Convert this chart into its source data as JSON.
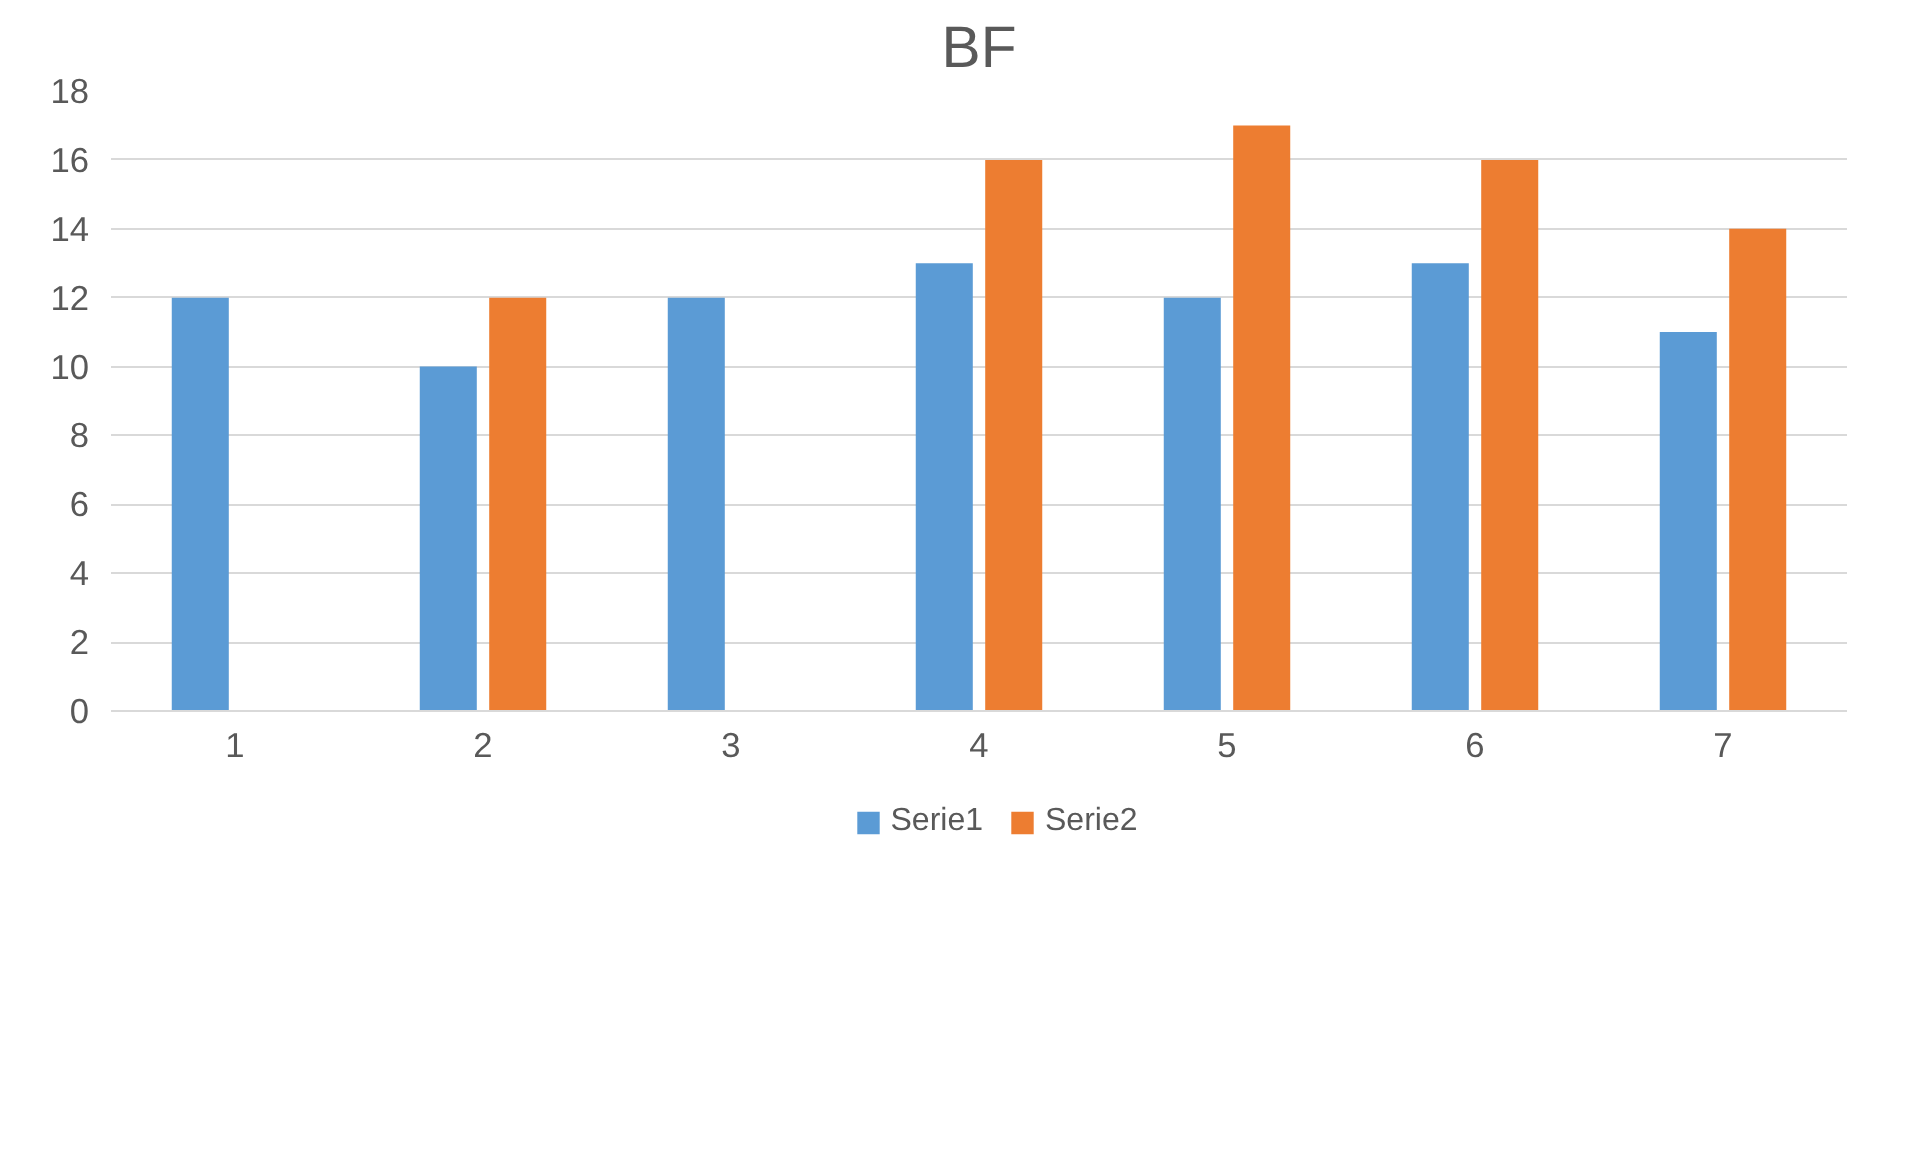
{
  "chart_data": {
    "type": "bar",
    "title": "BF",
    "categories": [
      "1",
      "2",
      "3",
      "4",
      "5",
      "6",
      "7"
    ],
    "series": [
      {
        "name": "Serie1",
        "color": "#5b9bd5",
        "values": [
          12,
          10,
          12,
          13,
          12,
          13,
          11
        ]
      },
      {
        "name": "Serie2",
        "color": "#ed7d31",
        "values": [
          null,
          12,
          null,
          16,
          17,
          16,
          14
        ]
      }
    ],
    "ylim": [
      0,
      18
    ],
    "yticks": [
      0,
      2,
      4,
      6,
      8,
      10,
      12,
      14,
      16,
      18
    ],
    "grid": "y",
    "legend": "bottom"
  }
}
